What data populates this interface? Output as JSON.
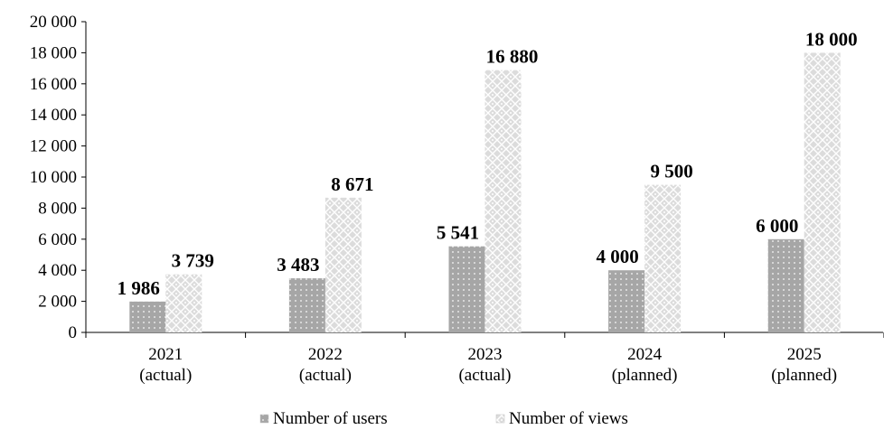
{
  "chart_data": {
    "type": "bar",
    "categories": [
      [
        "2021",
        "(actual)"
      ],
      [
        "2022",
        "(actual)"
      ],
      [
        "2023",
        "(actual)"
      ],
      [
        "2024",
        "(planned)"
      ],
      [
        "2025",
        "(planned)"
      ]
    ],
    "series": [
      {
        "name": "Number of users",
        "values": [
          1986,
          3483,
          5541,
          4000,
          6000
        ],
        "labels": [
          "1 986",
          "3 483",
          "5 541",
          "4 000",
          "6 000"
        ],
        "pattern": "dotted-dark-gray",
        "color": "#a6a6a6"
      },
      {
        "name": "Number of views",
        "values": [
          3739,
          8671,
          16880,
          9500,
          18000
        ],
        "labels": [
          "3 739",
          "8 671",
          "16 880",
          "9 500",
          "18 000"
        ],
        "pattern": "lattice-light-gray",
        "color": "#d9d9d9"
      }
    ],
    "yticks": [
      0,
      2000,
      4000,
      6000,
      8000,
      10000,
      12000,
      14000,
      16000,
      18000,
      20000
    ],
    "ytick_labels": [
      "0",
      "2 000",
      "4 000",
      "6 000",
      "8 000",
      "10 000",
      "12 000",
      "14 000",
      "16 000",
      "18 000",
      "20 000"
    ],
    "ylim": [
      0,
      20000
    ],
    "grid": false,
    "legend_position": "bottom"
  }
}
